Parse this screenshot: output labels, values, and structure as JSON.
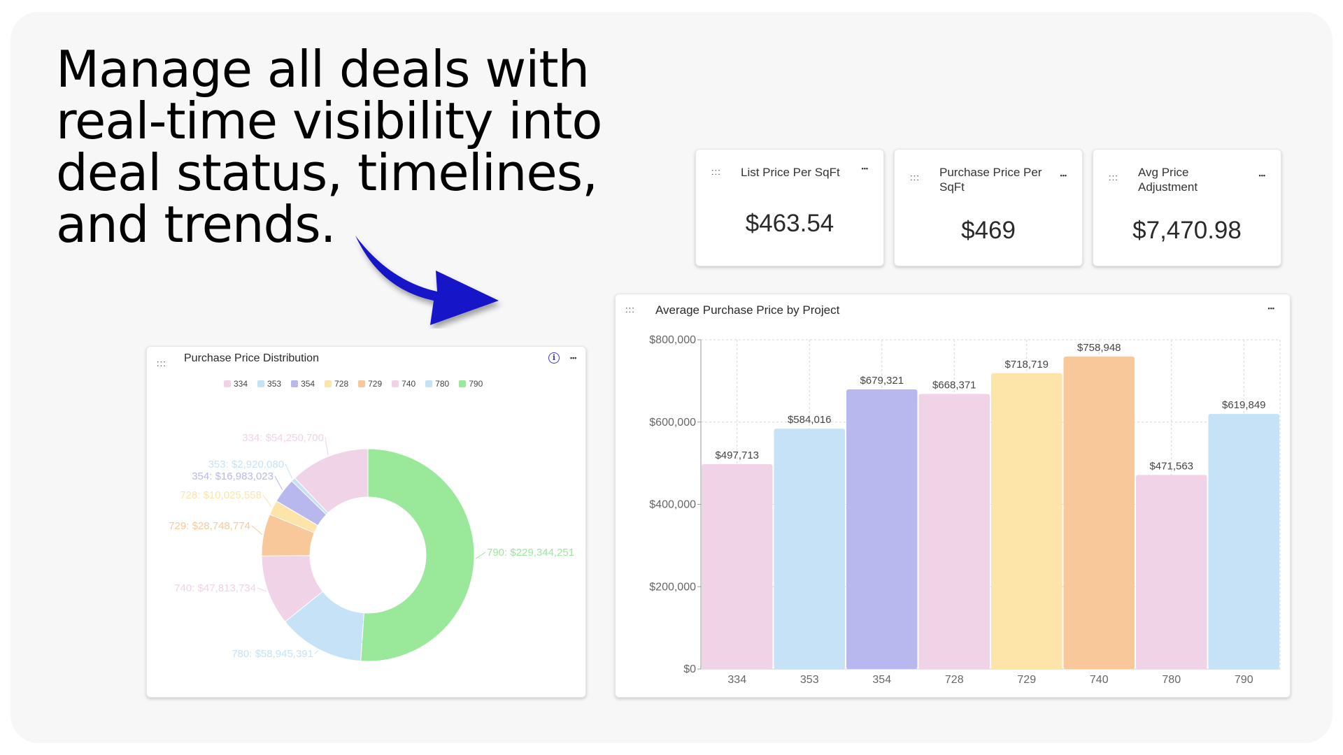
{
  "headline": "Manage all deals with real-time visibility into deal status, timelines, and trends.",
  "icons": {
    "drag": "drag-handle-icon",
    "more": "more-horizontal-icon",
    "info": "info-icon",
    "arrow": "curved-arrow-icon"
  },
  "drag_glyph": ":::",
  "more_glyph": "•••",
  "info_glyph": "i",
  "accent_color": "#1414c8",
  "kpis": [
    {
      "title": "List Price Per SqFt",
      "value": "$463.54"
    },
    {
      "title": "Purchase Price Per SqFt",
      "value": "$469"
    },
    {
      "title": "Avg Price Adjustment",
      "value": "$7,470.98"
    }
  ],
  "chart_data": [
    {
      "type": "pie",
      "variant": "donut",
      "title": "Purchase Price Distribution",
      "legend_placement": "top",
      "categories": [
        "334",
        "353",
        "354",
        "728",
        "729",
        "740",
        "780",
        "790"
      ],
      "values": [
        54250700,
        2920080,
        16983023,
        10025558,
        28748774,
        47813734,
        58945391,
        229344251
      ],
      "labels": [
        "334: $54,250,700",
        "353: $2,920,080",
        "354: $16,983,023",
        "728: $10,025,558",
        "729: $28,748,774",
        "740: $47,813,734",
        "780: $58,945,391",
        "790: $229,344,251"
      ],
      "colors": [
        "#f0d3e6",
        "#c6e2f7",
        "#b8b8ee",
        "#fde4a8",
        "#f8c89a",
        "#f0d3e6",
        "#c6e2f7",
        "#9ae89a"
      ]
    },
    {
      "type": "bar",
      "title": "Average Purchase Price by Project",
      "categories": [
        "334",
        "353",
        "354",
        "728",
        "729",
        "740",
        "780",
        "790"
      ],
      "values": [
        497713,
        584016,
        679321,
        668371,
        718719,
        758948,
        471563,
        619849
      ],
      "data_labels": [
        "$497,713",
        "$584,016",
        "$679,321",
        "$668,371",
        "$718,719",
        "$758,948",
        "$471,563",
        "$619,849"
      ],
      "yticks": [
        0,
        200000,
        400000,
        600000,
        800000
      ],
      "ytick_labels": [
        "$0",
        "$200,000",
        "$400,000",
        "$600,000",
        "$800,000"
      ],
      "ylim": [
        0,
        800000
      ],
      "grid": true,
      "colors": [
        "#f0d3e6",
        "#c6e2f7",
        "#b8b8ee",
        "#f0d3e6",
        "#fde4a8",
        "#f8c89a",
        "#f0d3e6",
        "#c6e2f7"
      ]
    }
  ]
}
